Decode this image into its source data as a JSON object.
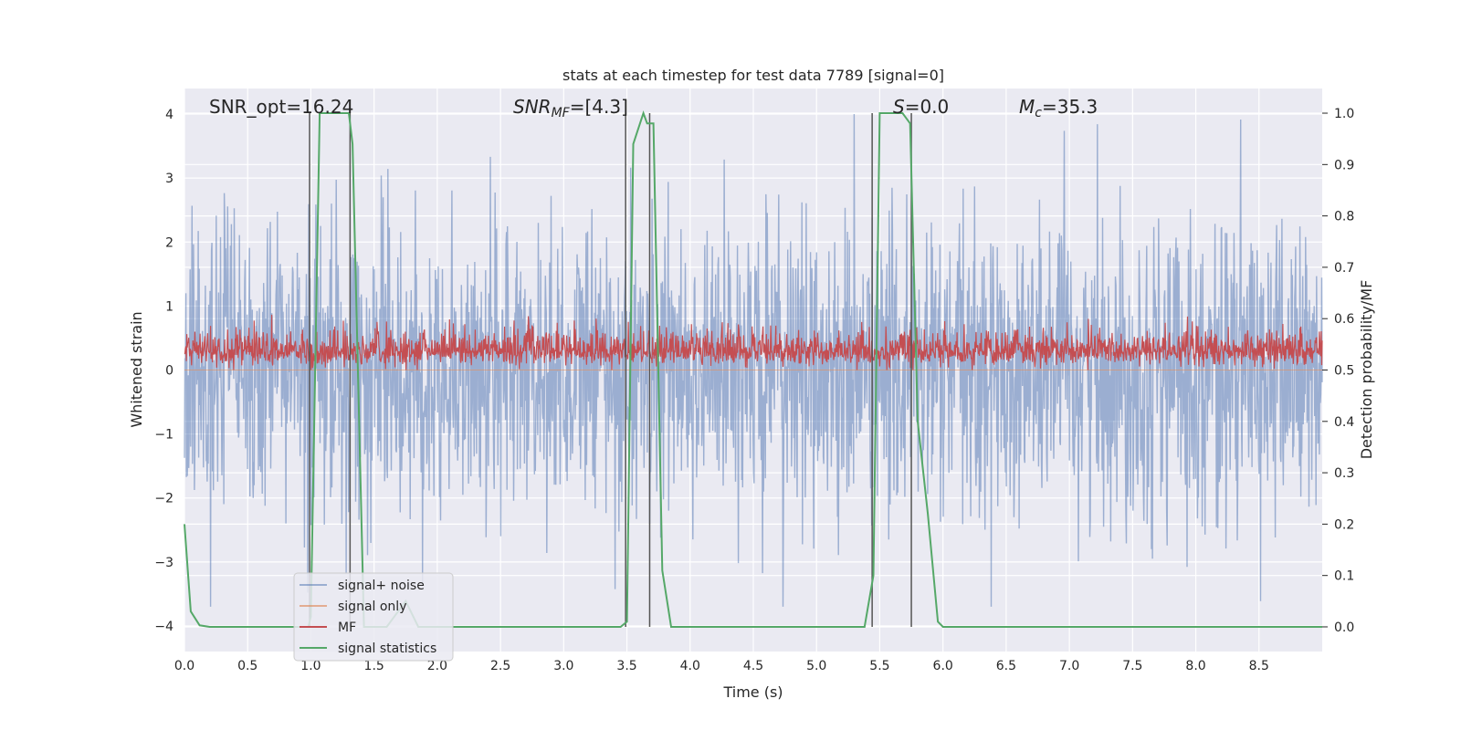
{
  "chart_data": {
    "type": "line",
    "title": "stats at each timestep for test data 7789 [signal=0]",
    "xlabel": "Time (s)",
    "ylabel": "Whitened strain",
    "y2label": "Detection probability/MF",
    "xlim": [
      0,
      9.0
    ],
    "ylim": [
      -4.4,
      4.4
    ],
    "y2lim": [
      -0.048,
      1.048
    ],
    "x_ticks": [
      "0.0",
      "0.5",
      "1.0",
      "1.5",
      "2.0",
      "2.5",
      "3.0",
      "3.5",
      "4.0",
      "4.5",
      "5.0",
      "5.5",
      "6.0",
      "6.5",
      "7.0",
      "7.5",
      "8.0",
      "8.5"
    ],
    "y_ticks": [
      "4",
      "3",
      "2",
      "1",
      "0",
      "−1",
      "−2",
      "−3",
      "−4"
    ],
    "y2_ticks": [
      "1.0",
      "0.9",
      "0.8",
      "0.7",
      "0.6",
      "0.5",
      "0.4",
      "0.3",
      "0.2",
      "0.1",
      "0.0"
    ],
    "grid": true,
    "legend_position": "lower-left",
    "annotations": {
      "snr_opt": "SNR_opt=16.24",
      "snr_mf": "SNR",
      "snr_mf_sub": "MF",
      "snr_mf_val": "=[4.3]",
      "s_var": "S",
      "s_val": "=0.0",
      "mc_var": "M",
      "mc_sub": "c",
      "mc_val": "=35.3"
    },
    "series": [
      {
        "name": "signal+ noise",
        "color": "#4c72b0",
        "description_range": [
          -3.6,
          4.0
        ]
      },
      {
        "name": "signal only",
        "color": "#dd8452",
        "values": "flat near 0"
      },
      {
        "name": "MF",
        "color": "#c44e52",
        "range": [
          0.0,
          0.95
        ]
      },
      {
        "name": "signal statistics",
        "color": "#55a868",
        "axis": "right",
        "x": [
          0.0,
          0.05,
          0.12,
          0.2,
          0.5,
          0.9,
          0.98,
          1.0,
          1.07,
          1.12,
          1.25,
          1.3,
          1.33,
          1.42,
          1.5,
          1.6,
          1.75,
          1.85,
          1.95,
          2.5,
          3.0,
          3.45,
          3.5,
          3.55,
          3.63,
          3.66,
          3.71,
          3.78,
          3.85,
          4.0,
          5.0,
          5.38,
          5.45,
          5.5,
          5.68,
          5.74,
          5.8,
          5.88,
          5.96,
          6.0,
          9.0
        ],
        "y": [
          0.2,
          0.03,
          0.003,
          0.0,
          0.0,
          0.0,
          0.0,
          0.02,
          1.0,
          1.0,
          1.0,
          1.0,
          0.94,
          0.0,
          0.0,
          0.0,
          0.05,
          0.0,
          0.0,
          0.0,
          0.0,
          0.0,
          0.01,
          0.94,
          1.0,
          0.98,
          0.98,
          0.11,
          0.0,
          0.0,
          0.0,
          0.0,
          0.1,
          1.0,
          1.0,
          0.98,
          0.4,
          0.22,
          0.01,
          0.0,
          0.0
        ]
      },
      {
        "name": "prediction boundaries",
        "color": "#555555",
        "x": [
          0.99,
          1.31,
          3.49,
          3.68,
          5.44,
          5.75
        ]
      }
    ]
  },
  "legend": {
    "items": [
      {
        "label": "signal+ noise",
        "color": "#4c72b0"
      },
      {
        "label": "signal only",
        "color": "#dd8452"
      },
      {
        "label": "MF",
        "color": "#c44e52"
      },
      {
        "label": "signal statistics",
        "color": "#55a868"
      }
    ]
  }
}
